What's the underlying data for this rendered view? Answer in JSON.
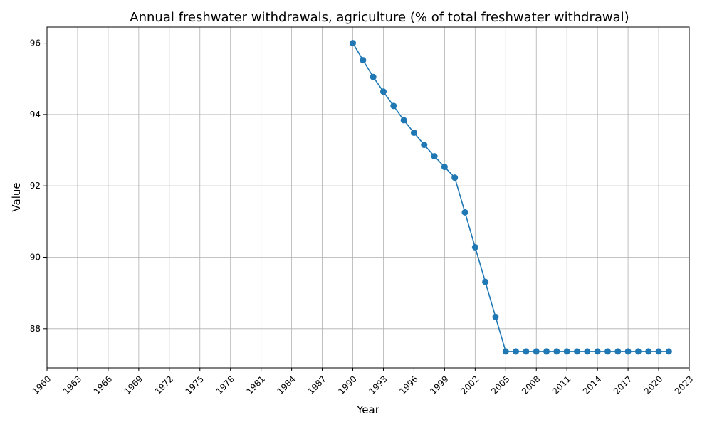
{
  "chart_data": {
    "type": "line",
    "title": "Annual freshwater withdrawals, agriculture (% of total freshwater withdrawal)",
    "xlabel": "Year",
    "ylabel": "Value",
    "xlim": [
      1960,
      2023
    ],
    "ylim": [
      86.9,
      96.45
    ],
    "xticks": [
      1960,
      1963,
      1966,
      1969,
      1972,
      1975,
      1978,
      1981,
      1984,
      1987,
      1990,
      1993,
      1996,
      1999,
      2002,
      2005,
      2008,
      2011,
      2014,
      2017,
      2020,
      2023
    ],
    "yticks": [
      88,
      90,
      92,
      94,
      96
    ],
    "grid": true,
    "color": "#1f77b4",
    "marker": "circle",
    "series": [
      {
        "x": [
          1990,
          1991,
          1992,
          1993,
          1994,
          1995,
          1996,
          1997,
          1998,
          1999,
          2000,
          2001,
          2002,
          2003,
          2004,
          2005,
          2006,
          2007,
          2008,
          2009,
          2010,
          2011,
          2012,
          2013,
          2014,
          2015,
          2016,
          2017,
          2018,
          2019,
          2020,
          2021
        ],
        "values": [
          96.0,
          95.52,
          95.05,
          94.64,
          94.24,
          93.84,
          93.49,
          93.15,
          92.83,
          92.53,
          92.23,
          91.26,
          90.28,
          89.31,
          88.33,
          87.36,
          87.36,
          87.36,
          87.36,
          87.36,
          87.36,
          87.36,
          87.36,
          87.36,
          87.36,
          87.36,
          87.36,
          87.36,
          87.36,
          87.36,
          87.36,
          87.36
        ]
      }
    ]
  }
}
